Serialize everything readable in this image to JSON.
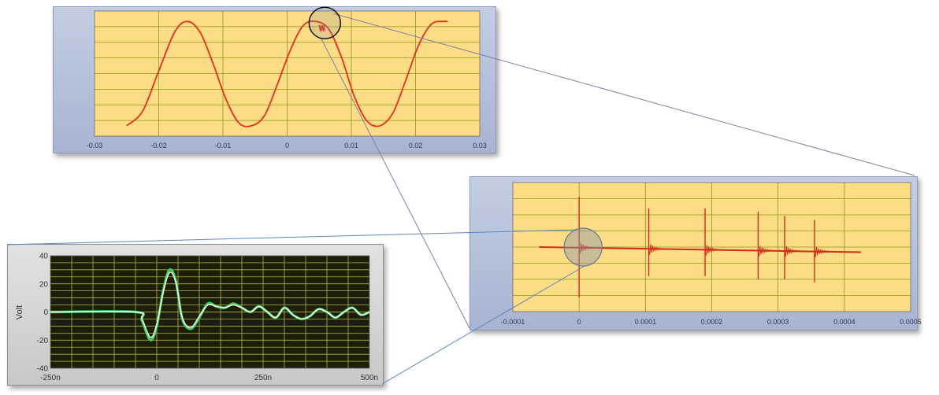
{
  "chart_data": [
    {
      "type": "line",
      "title": "",
      "xlabel": "",
      "ylabel": "",
      "xlim": [
        -0.03,
        0.03
      ],
      "ylim": [
        -1.2,
        1.2
      ],
      "x_ticks": [
        "-0.03",
        "-0.02",
        "-0.01",
        "0",
        "0.01",
        "0.02",
        "0.03"
      ],
      "y_ticks": [],
      "grid": true,
      "series": [
        {
          "color": "#e0301e",
          "x": [
            -0.025,
            -0.0225,
            -0.02,
            -0.0175,
            -0.0155,
            -0.0135,
            -0.0115,
            -0.0095,
            -0.0075,
            -0.0055,
            -0.0035,
            -0.0015,
            0.0005,
            0.0025,
            0.0045,
            0.0065,
            0.0085,
            0.0105,
            0.0125,
            0.0145,
            0.0165,
            0.0185,
            0.0205,
            0.0225,
            0.0245,
            0.025
          ],
          "y": [
            -1.0,
            -0.72,
            0.05,
            0.8,
            1.0,
            0.78,
            0.18,
            -0.5,
            -0.95,
            -1.0,
            -0.8,
            -0.2,
            0.45,
            0.92,
            1.0,
            0.85,
            0.3,
            -0.45,
            -0.92,
            -1.0,
            -0.75,
            -0.12,
            0.55,
            0.95,
            1.0,
            1.0
          ]
        }
      ],
      "zoom_marker_x": 0.0055
    },
    {
      "type": "line",
      "title": "",
      "xlabel": "",
      "ylabel": "",
      "xlim": [
        -0.0001,
        0.0005
      ],
      "ylim": [
        -1.0,
        1.0
      ],
      "x_ticks": [
        "-0.0001",
        "0",
        "0.0001",
        "0.0002",
        "0.0003",
        "0.0004",
        "0.0005"
      ],
      "y_ticks": [],
      "grid": true,
      "series": [
        {
          "color": "#d42a1a",
          "baseline_x": [
            -6e-05,
            0.000425
          ],
          "baseline_y": [
            0.0,
            -0.08
          ],
          "spike_x": [
            0.0,
            0.000105,
            0.00019,
            0.00027,
            0.00031,
            0.000355
          ],
          "spike_up": [
            0.78,
            0.6,
            0.6,
            0.55,
            0.48,
            0.42
          ],
          "spike_down": [
            -0.78,
            -0.45,
            -0.45,
            -0.5,
            -0.5,
            -0.55
          ]
        }
      ],
      "zoom_marker_x": 0.0
    },
    {
      "type": "line",
      "title": "",
      "xlabel": "",
      "ylabel": "Volt",
      "xlim": [
        -250,
        500
      ],
      "ylim": [
        -40,
        40
      ],
      "x_ticks": [
        "-250n",
        "0",
        "250n",
        "500n"
      ],
      "y_ticks": [
        "40",
        "20",
        "0",
        "-20",
        "-40"
      ],
      "grid": true,
      "series": [
        {
          "color": "#3ccf5a",
          "x": [
            -250,
            -50,
            -35,
            -15,
            0,
            15,
            30,
            45,
            60,
            80,
            100,
            120,
            140,
            160,
            180,
            200,
            220,
            240,
            260,
            280,
            300,
            320,
            340,
            360,
            380,
            400,
            420,
            440,
            460,
            480,
            500
          ],
          "y": [
            0,
            0,
            -6,
            -20,
            -10,
            15,
            30,
            22,
            -5,
            -12,
            -4,
            6,
            4,
            3,
            6,
            3,
            0,
            4,
            0,
            -4,
            3,
            -2,
            -5,
            -3,
            2,
            0,
            -4,
            0,
            3,
            -2,
            0
          ]
        },
        {
          "color": "#ffffff",
          "x": [
            -250,
            -50,
            -35,
            -15,
            0,
            15,
            30,
            45,
            60,
            80,
            100,
            120,
            140,
            160,
            180,
            200,
            220,
            240,
            260,
            280,
            300,
            320,
            340,
            360,
            380,
            400,
            420,
            440,
            460,
            480,
            500
          ],
          "y": [
            0,
            0,
            -5,
            -18,
            -9,
            14,
            28,
            21,
            -4,
            -11,
            -3,
            5,
            4,
            3,
            5,
            3,
            0,
            4,
            0,
            -4,
            3,
            -2,
            -5,
            -3,
            2,
            0,
            -4,
            0,
            3,
            -2,
            0
          ]
        }
      ],
      "zoom_marker_x": null
    }
  ]
}
